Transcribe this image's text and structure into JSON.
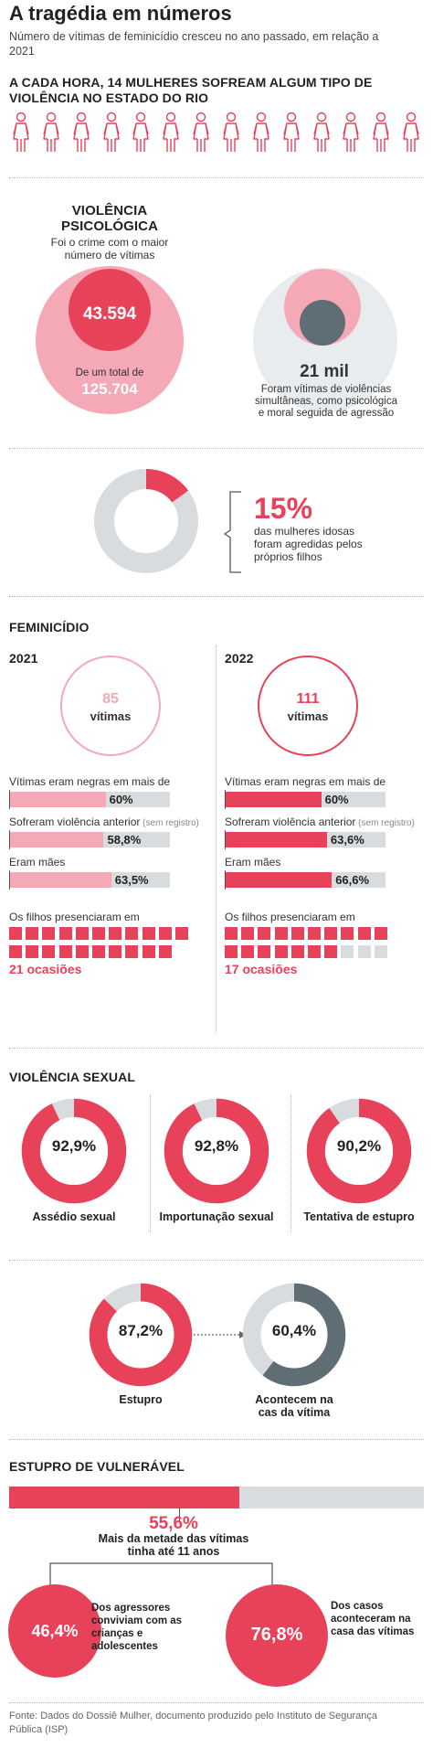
{
  "header": {
    "title": "A tragédia em números",
    "subtitle": "Número de vítimas de feminicídio cresceu no ano passado, em relação a 2021"
  },
  "hourly": {
    "heading": "A CADA HORA, 14 MULHERES SOFREAM ALGUM TIPO DE VIOLÊNCIA NO ESTADO DO RIO",
    "count": 14
  },
  "psych": {
    "heading": "VIOLÊNCIA PSICOLÓGICA",
    "desc": "Foi o crime com o maior número de vítimas",
    "value": "43.594",
    "total_caption": "De um total de",
    "total": "125.704",
    "simul_value": "21 mil",
    "simul_desc": "Foram vítimas de violências simultâneas, como psicológica e moral seguida de agressão"
  },
  "elderly": {
    "value": "15%",
    "fraction": 0.15,
    "desc": "das mulheres idosas foram agredidas pelos próprios filhos"
  },
  "femicide": {
    "heading": "FEMINICÍDIO",
    "years": [
      {
        "year": "2021",
        "victims": "85",
        "victims_label": "vítimas",
        "bars": [
          {
            "label": "Vítimas eram negras em mais de",
            "note": "",
            "value": 60,
            "display": "60%"
          },
          {
            "label": "Sofreram violência anterior",
            "note": "(sem registro)",
            "value": 58.8,
            "display": "58,8%"
          },
          {
            "label": "Eram mães",
            "note": "",
            "value": 63.5,
            "display": "63,5%"
          }
        ],
        "children_label": "Os filhos presenciaram em",
        "occasions": 21,
        "occasions_label": "21 ocasiões"
      },
      {
        "year": "2022",
        "victims": "111",
        "victims_label": "vítimas",
        "bars": [
          {
            "label": "Vítimas eram negras em mais de",
            "note": "",
            "value": 60,
            "display": "60%"
          },
          {
            "label": "Sofreram violência anterior",
            "note": "(sem registro)",
            "value": 63.6,
            "display": "63,6%"
          },
          {
            "label": "Eram mães",
            "note": "",
            "value": 66.6,
            "display": "66,6%"
          }
        ],
        "children_label": "Os filhos presenciaram em",
        "occasions": 17,
        "occasions_label": "17 ocasiões"
      }
    ]
  },
  "sexual": {
    "heading": "VIOLÊNCIA SEXUAL",
    "items": [
      {
        "label": "Assédio sexual",
        "value": 92.9,
        "display": "92,9%"
      },
      {
        "label": "Importunação sexual",
        "value": 92.8,
        "display": "92,8%"
      },
      {
        "label": "Tentativa de estupro",
        "value": 90.2,
        "display": "90,2%"
      }
    ],
    "rape": {
      "label": "Estupro",
      "value": 87.2,
      "display": "87,2%"
    },
    "home": {
      "label": "Acontecem na cas da vítima",
      "value": 60.4,
      "display": "60,4%"
    }
  },
  "vulnerable": {
    "heading": "ESTUPRO DE VULNERÁVEL",
    "bar_value": 55.6,
    "bar_display": "55,6%",
    "bar_desc": "Mais da metade das vítimas tinha até 11 anos",
    "left_value": "46,4%",
    "left_desc": "Dos agressores conviviam com as crianças e adolescentes",
    "right_value": "76,8%",
    "right_desc": "Dos casos aconteceram na casa das vítimas"
  },
  "footer": {
    "source": "Fonte: Dados do Dossiê Mulher, documento produzido pelo Instituto de Segurança Pública (ISP)"
  },
  "colors": {
    "red": "#e8425a",
    "pink": "#f5a8b5",
    "light_pink": "#fbd3da",
    "grey": "#d8dcdf",
    "dark_grey": "#5f6d74",
    "text": "#222222"
  },
  "chart_data": [
    {
      "type": "bar",
      "title": "VIOLÊNCIA PSICOLÓGICA",
      "values": [
        43594,
        125704
      ]
    },
    {
      "type": "pie",
      "values": [
        15
      ]
    },
    {
      "type": "bar",
      "title": "FEMINICÍDIO",
      "categories": [
        "2021",
        "2022"
      ],
      "values": [
        85,
        111
      ]
    },
    {
      "type": "bar",
      "categories": [
        "Vítimas eram negras em mais de",
        "Sofreram violência anterior",
        "Eram mães"
      ],
      "series": [
        {
          "name": "2021",
          "values": [
            60,
            58.8,
            63.5
          ]
        },
        {
          "name": "2022",
          "values": [
            60,
            63.6,
            66.6
          ]
        }
      ]
    },
    {
      "type": "bar",
      "categories": [
        "2021",
        "2022"
      ],
      "values": [
        21,
        17
      ]
    },
    {
      "type": "pie",
      "title": "VIOLÊNCIA SEXUAL",
      "categories": [
        "Assédio sexual",
        "Importunação sexual",
        "Tentativa de estupro",
        "Estupro",
        "Acontecem na cas da vítima"
      ],
      "values": [
        92.9,
        92.8,
        90.2,
        87.2,
        60.4
      ]
    },
    {
      "type": "bar",
      "title": "ESTUPRO DE VULNERÁVEL",
      "values": [
        55.6,
        46.4,
        76.8
      ]
    }
  ]
}
